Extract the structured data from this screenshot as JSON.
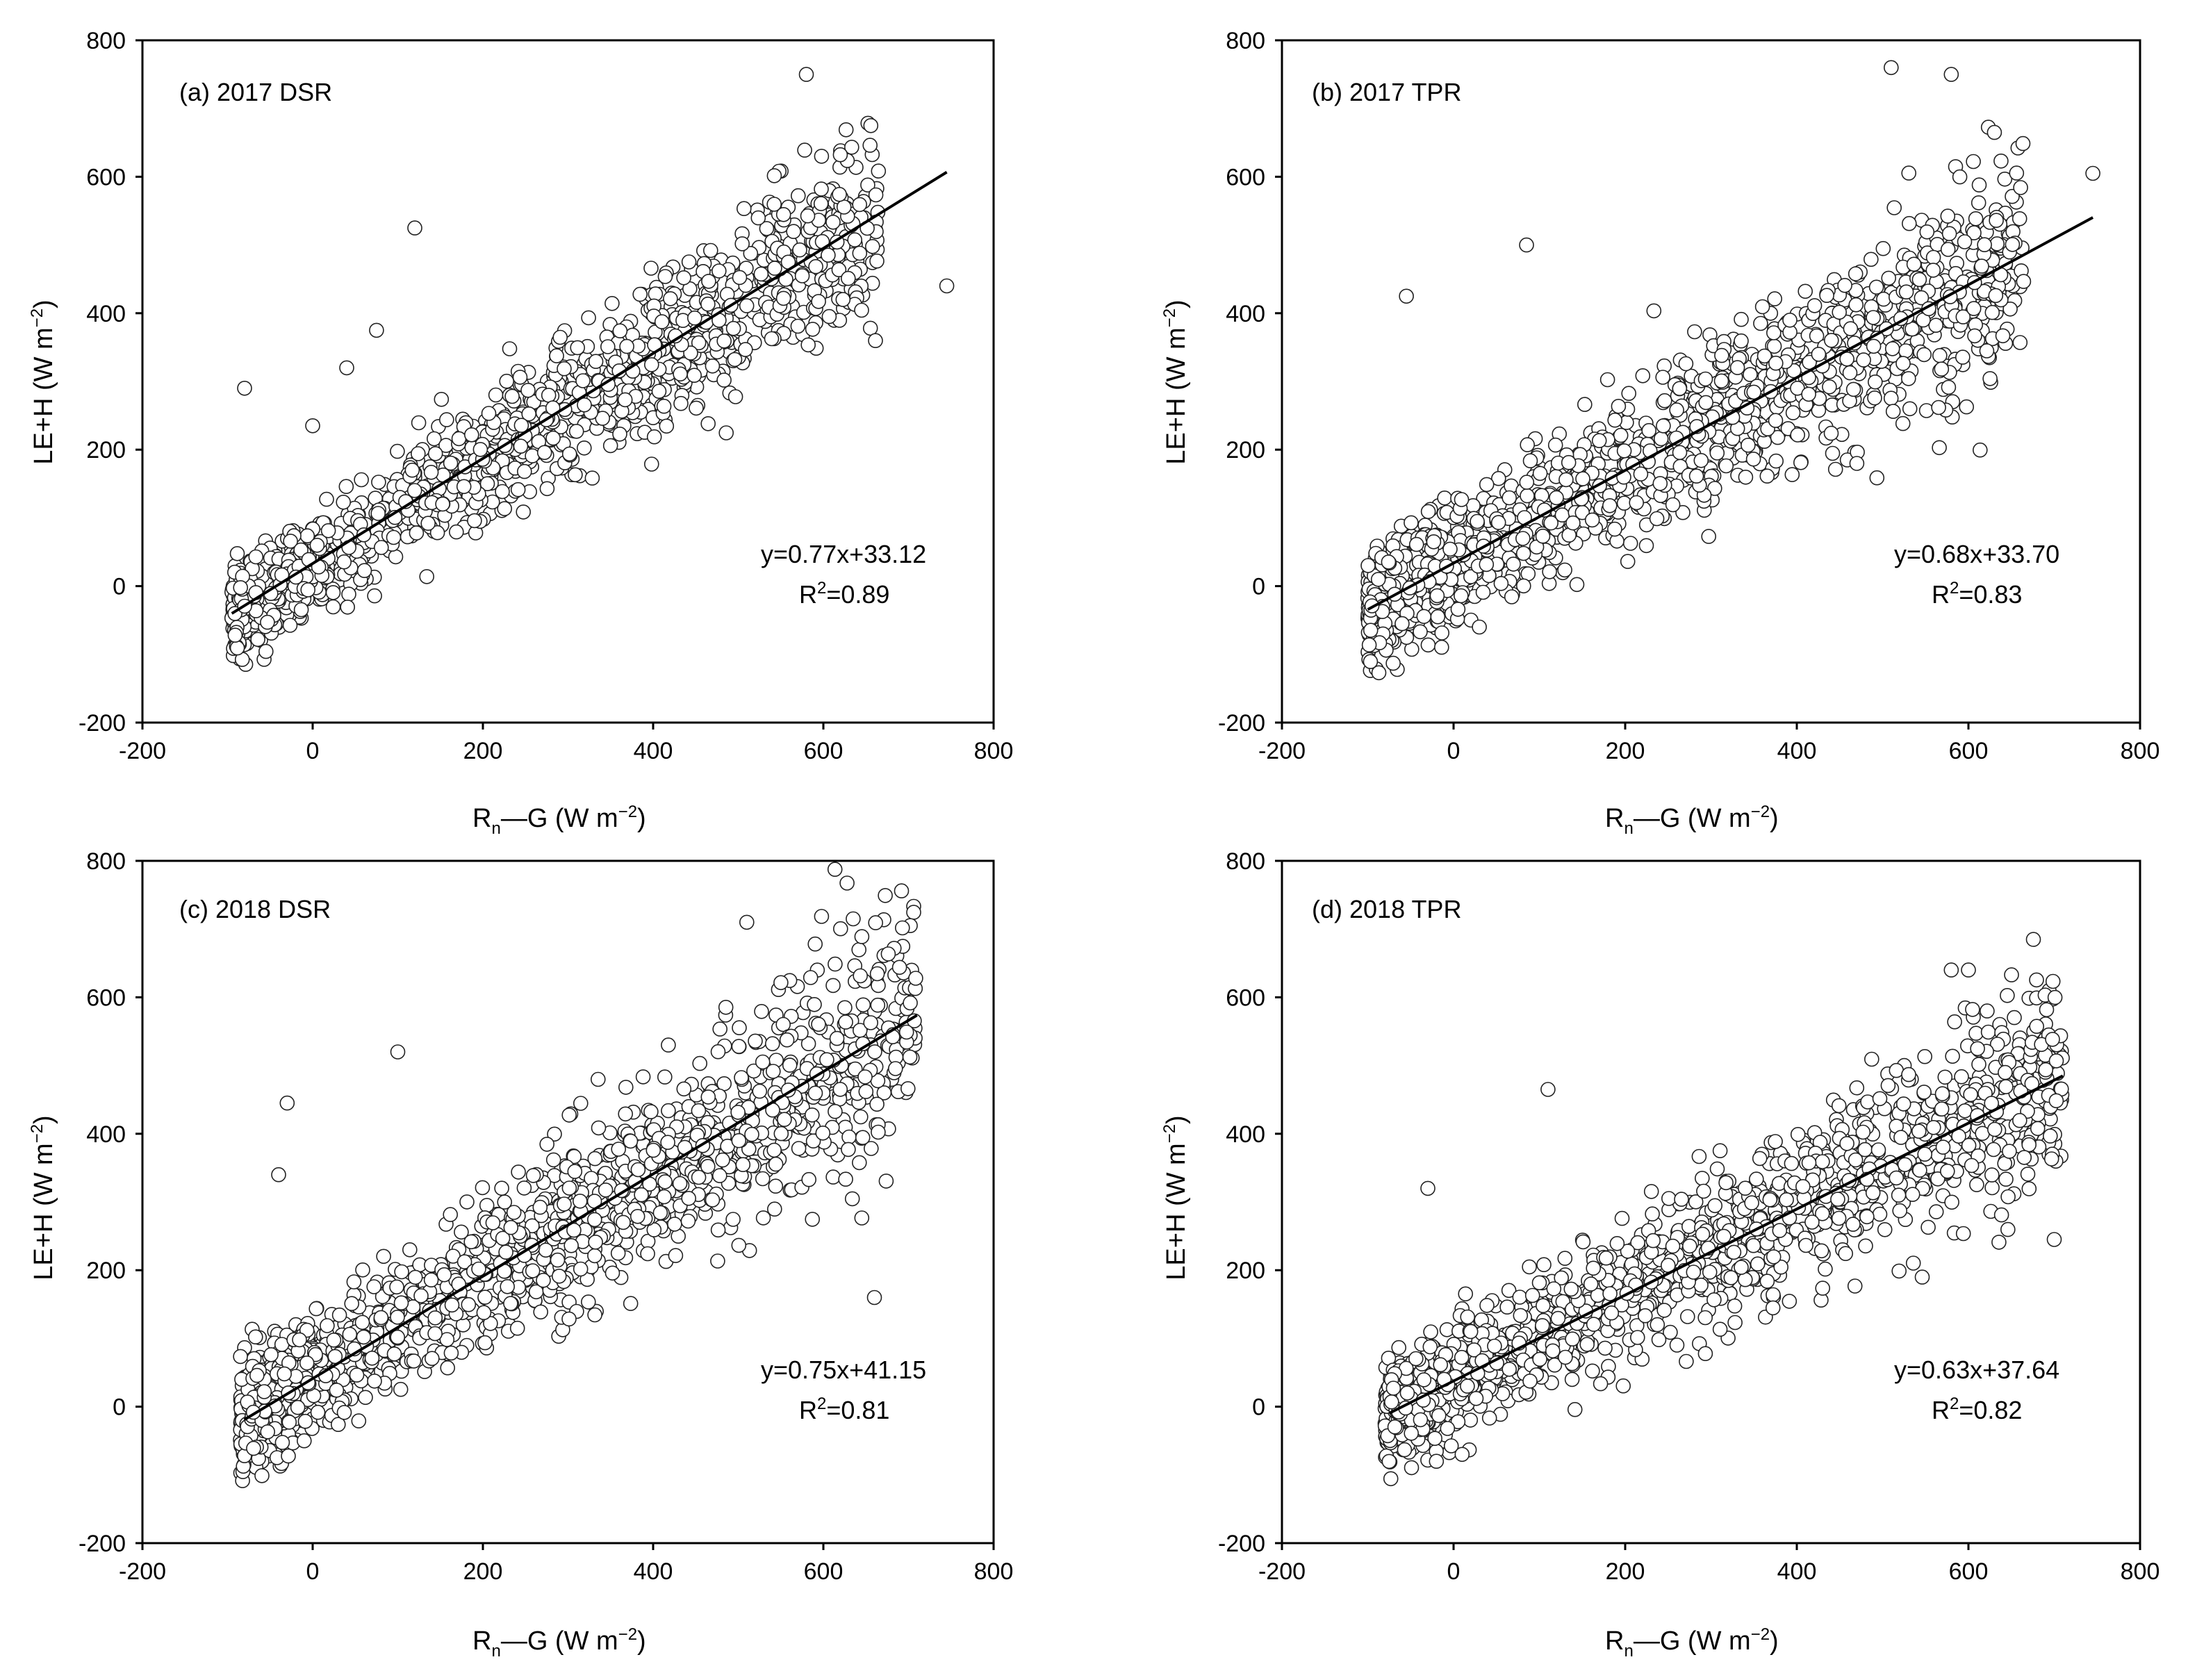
{
  "chart_data": [
    {
      "type": "scatter",
      "title": "(a) 2017 DSR",
      "xlabel_main": "R",
      "xlabel_sub": "n",
      "xlabel_rest": "—G (W m",
      "xlabel_sup": "−2",
      "xlabel_end": ")",
      "ylabel_main": "LE+H (W m",
      "ylabel_sup": "−2",
      "ylabel_end": ")",
      "xlim": [
        -200,
        800
      ],
      "ylim": [
        -200,
        800
      ],
      "xticks": [
        "-200",
        "0",
        "200",
        "400",
        "600",
        "800"
      ],
      "yticks": [
        "-200",
        "0",
        "200",
        "400",
        "600",
        "800"
      ],
      "fit": {
        "slope": 0.77,
        "intercept": 33.12,
        "x_range": [
          -95,
          745
        ]
      },
      "equation": "y=0.77x+33.12",
      "r2_main": "R",
      "r2_sup": "2",
      "r2_value": "=0.89",
      "scatter_model": {
        "n": 1700,
        "x_min": -95,
        "x_max": 665,
        "noise_sd": 60,
        "seed": 11
      },
      "outliers": [
        [
          -80,
          290
        ],
        [
          120,
          525
        ],
        [
          745,
          440
        ],
        [
          580,
          750
        ],
        [
          75,
          375
        ],
        [
          0,
          235
        ],
        [
          40,
          320
        ]
      ]
    },
    {
      "type": "scatter",
      "title": "(b) 2017 TPR",
      "xlabel_main": "R",
      "xlabel_sub": "n",
      "xlabel_rest": "—G (W m",
      "xlabel_sup": "−2",
      "xlabel_end": ")",
      "ylabel_main": "LE+H (W m",
      "ylabel_sup": "−2",
      "ylabel_end": ")",
      "xlim": [
        -200,
        800
      ],
      "ylim": [
        -200,
        800
      ],
      "xticks": [
        "-200",
        "0",
        "200",
        "400",
        "600",
        "800"
      ],
      "yticks": [
        "-200",
        "0",
        "200",
        "400",
        "600",
        "800"
      ],
      "fit": {
        "slope": 0.68,
        "intercept": 33.7,
        "x_range": [
          -100,
          745
        ]
      },
      "equation": "y=0.68x+33.70",
      "r2_main": "R",
      "r2_sup": "2",
      "r2_value": "=0.83",
      "scatter_model": {
        "n": 1700,
        "x_min": -100,
        "x_max": 665,
        "noise_sd": 72,
        "seed": 23
      },
      "outliers": [
        [
          -55,
          425
        ],
        [
          85,
          500
        ],
        [
          745,
          605
        ],
        [
          510,
          760
        ],
        [
          580,
          750
        ],
        [
          -60,
          -55
        ],
        [
          30,
          -60
        ]
      ]
    },
    {
      "type": "scatter",
      "title": "(c) 2018 DSR",
      "xlabel_main": "R",
      "xlabel_sub": "n",
      "xlabel_rest": "—G (W m",
      "xlabel_sup": "−2",
      "xlabel_end": ")",
      "ylabel_main": "LE+H (W m",
      "ylabel_sup": "−2",
      "ylabel_end": ")",
      "xlim": [
        -200,
        800
      ],
      "ylim": [
        -200,
        800
      ],
      "xticks": [
        "-200",
        "0",
        "200",
        "400",
        "600",
        "800"
      ],
      "yticks": [
        "-200",
        "0",
        "200",
        "400",
        "600",
        "800"
      ],
      "fit": {
        "slope": 0.75,
        "intercept": 41.15,
        "x_range": [
          -80,
          710
        ]
      },
      "equation": "y=0.75x+41.15",
      "r2_main": "R",
      "r2_sup": "2",
      "r2_value": "=0.81",
      "scatter_model": {
        "n": 1800,
        "x_min": -85,
        "x_max": 710,
        "noise_sd": 80,
        "seed": 37
      },
      "outliers": [
        [
          -30,
          445
        ],
        [
          510,
          710
        ],
        [
          635,
          715
        ],
        [
          660,
          160
        ],
        [
          -40,
          340
        ],
        [
          -10,
          -50
        ],
        [
          100,
          520
        ]
      ]
    },
    {
      "type": "scatter",
      "title": "(d) 2018 TPR",
      "xlabel_main": "R",
      "xlabel_sub": "n",
      "xlabel_rest": "—G (W m",
      "xlabel_sup": "−2",
      "xlabel_end": ")",
      "ylabel_main": "LE+H (W m",
      "ylabel_sup": "−2",
      "ylabel_end": ")",
      "xlim": [
        -200,
        800
      ],
      "ylim": [
        -200,
        800
      ],
      "xticks": [
        "-200",
        "0",
        "200",
        "400",
        "600",
        "800"
      ],
      "yticks": [
        "-200",
        "0",
        "200",
        "400",
        "600",
        "800"
      ],
      "fit": {
        "slope": 0.63,
        "intercept": 37.64,
        "x_range": [
          -75,
          710
        ]
      },
      "equation": "y=0.63x+37.64",
      "r2_main": "R",
      "r2_sup": "2",
      "r2_value": "=0.82",
      "scatter_model": {
        "n": 1800,
        "x_min": -80,
        "x_max": 710,
        "noise_sd": 68,
        "seed": 53
      },
      "outliers": [
        [
          -30,
          320
        ],
        [
          110,
          465
        ],
        [
          580,
          640
        ],
        [
          600,
          640
        ],
        [
          -20,
          -80
        ],
        [
          10,
          -70
        ],
        [
          700,
          245
        ]
      ]
    }
  ]
}
